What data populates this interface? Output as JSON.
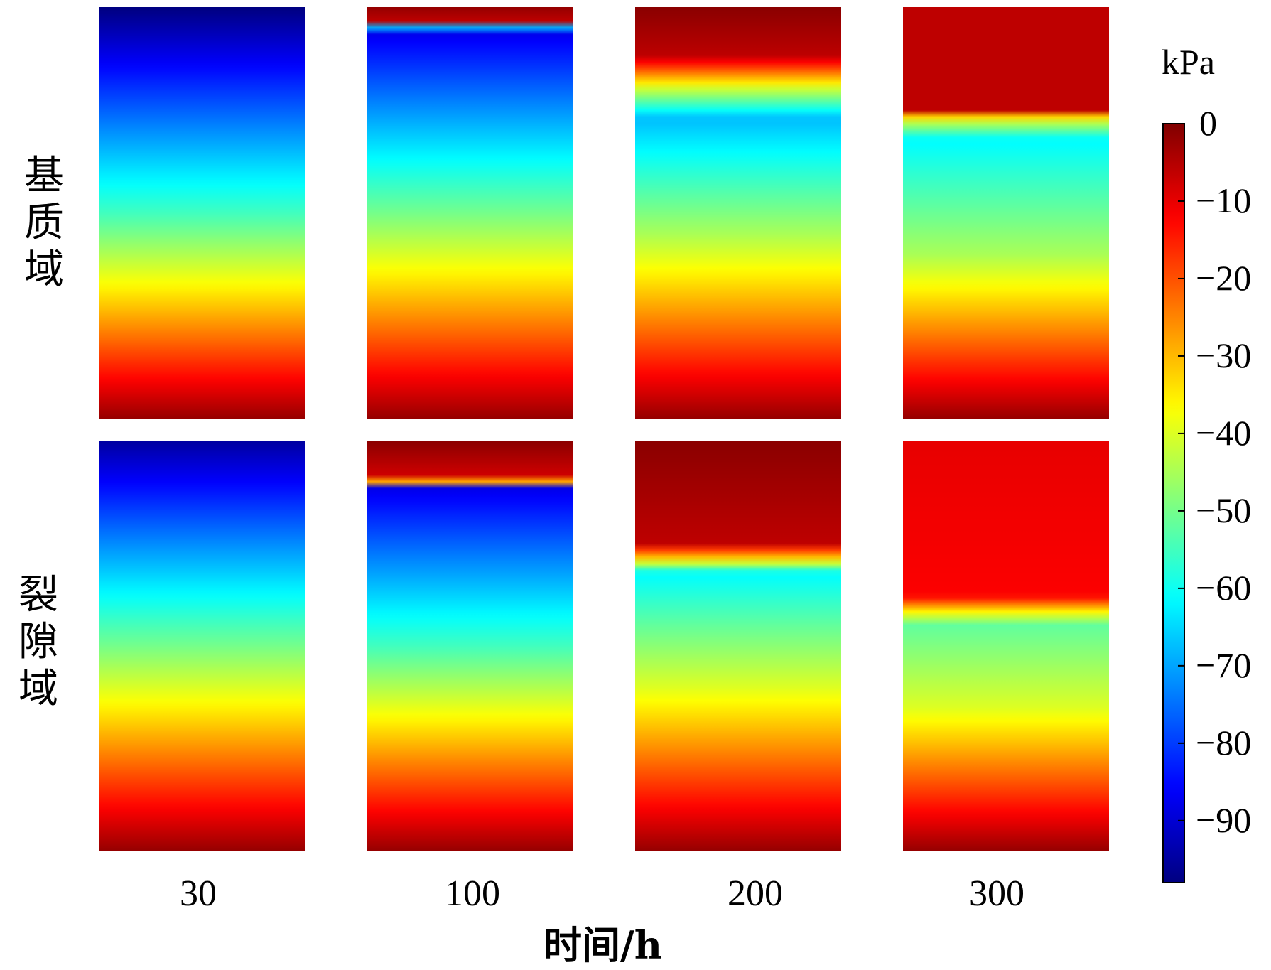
{
  "chart_data": {
    "type": "heatmap",
    "xlabel": "时间/h",
    "columns": [
      "30",
      "100",
      "200",
      "300"
    ],
    "rows": [
      {
        "label": "基质域",
        "chars": [
          "基",
          "质",
          "域"
        ]
      },
      {
        "label": "裂隙域",
        "chars": [
          "裂",
          "隙",
          "域"
        ]
      }
    ],
    "colorbar": {
      "unit": "kPa",
      "range": [
        -98,
        0
      ],
      "ticks": [
        0,
        -10,
        -20,
        -30,
        -40,
        -50,
        -60,
        -70,
        -80,
        -90
      ],
      "tick_labels": [
        "0",
        "−10",
        "−20",
        "−30",
        "−40",
        "−50",
        "−60",
        "−70",
        "−80",
        "−90"
      ],
      "colormap": "jet"
    },
    "profiles": [
      [
        {
          "t": "30",
          "stops": [
            [
              0,
              -98
            ],
            [
              0.5,
              -55
            ],
            [
              1,
              -2
            ]
          ]
        },
        {
          "t": "100",
          "stops": [
            [
              0,
              -2
            ],
            [
              0.035,
              -6
            ],
            [
              0.045,
              -60
            ],
            [
              0.06,
              -88
            ],
            [
              0.5,
              -50
            ],
            [
              1,
              -2
            ]
          ]
        },
        {
          "t": "200",
          "stops": [
            [
              0,
              -1
            ],
            [
              0.12,
              -6
            ],
            [
              0.2,
              -42
            ],
            [
              0.27,
              -68
            ],
            [
              0.55,
              -45
            ],
            [
              1,
              -2
            ]
          ]
        },
        {
          "t": "300",
          "stops": [
            [
              0,
              -6
            ],
            [
              0.25,
              -6
            ],
            [
              0.27,
              -38
            ],
            [
              0.32,
              -62
            ],
            [
              0.6,
              -45
            ],
            [
              1,
              -2
            ]
          ]
        }
      ],
      [
        {
          "t": "30",
          "stops": [
            [
              0,
              -95
            ],
            [
              0.5,
              -50
            ],
            [
              1,
              -2
            ]
          ]
        },
        {
          "t": "100",
          "stops": [
            [
              0,
              -1
            ],
            [
              0.09,
              -8
            ],
            [
              0.105,
              -38
            ],
            [
              0.115,
              -88
            ],
            [
              0.5,
              -55
            ],
            [
              1,
              -2
            ]
          ]
        },
        {
          "t": "200",
          "stops": [
            [
              0,
              -1
            ],
            [
              0.25,
              -6
            ],
            [
              0.3,
              -42
            ],
            [
              0.32,
              -62
            ],
            [
              0.6,
              -40
            ],
            [
              1,
              -2
            ]
          ]
        },
        {
          "t": "300",
          "stops": [
            [
              0,
              -10
            ],
            [
              0.38,
              -12
            ],
            [
              0.42,
              -38
            ],
            [
              0.45,
              -52
            ],
            [
              0.65,
              -40
            ],
            [
              1,
              -2
            ]
          ]
        }
      ]
    ]
  }
}
